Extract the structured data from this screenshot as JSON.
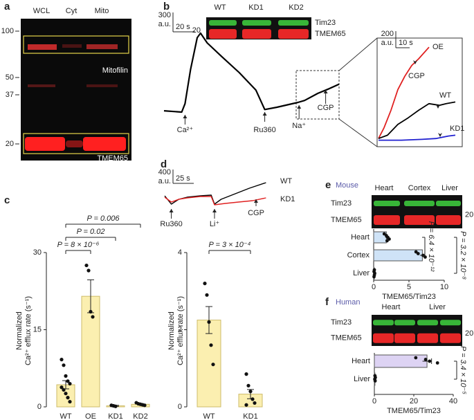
{
  "a": {
    "label": "a",
    "lanes": [
      "WCL",
      "Cyt",
      "Mito"
    ],
    "mw": [
      100,
      50,
      37,
      20
    ],
    "bands": [
      "Mitofilin",
      "TMEM65"
    ]
  },
  "b": {
    "label": "b",
    "blot": {
      "lanes": [
        "WT",
        "KD1",
        "KD2"
      ],
      "rows": [
        "Tim23",
        "TMEM65"
      ],
      "mw": [
        20
      ]
    },
    "trace": {
      "type": "line",
      "scale": {
        "y": 300,
        "unit": "a.u.",
        "x": {
          "value": 20,
          "label": "20 s"
        }
      },
      "xlim": [
        0,
        160
      ],
      "ylim": [
        0,
        1250
      ],
      "series": [
        {
          "color": "#000000",
          "x": [
            0,
            16,
            19,
            24,
            30,
            33,
            39,
            52,
            68,
            83,
            91,
            102,
            121,
            127,
            139,
            149,
            158
          ],
          "values": [
            20,
            0,
            130,
            660,
            1150,
            1220,
            1070,
            860,
            610,
            340,
            40,
            75,
            150,
            180,
            290,
            360,
            430
          ]
        }
      ],
      "events": [
        {
          "label": "Ca²⁺",
          "x": 19
        },
        {
          "label": "Ru360",
          "x": 91
        },
        {
          "label": "Na⁺",
          "x": 122
        },
        {
          "label": "CGP",
          "x": 146
        }
      ]
    },
    "inset": {
      "type": "line",
      "scale": {
        "y": 200,
        "unit": "a.u.",
        "x": {
          "value": 10,
          "label": "10 s"
        }
      },
      "xlim": [
        0,
        57
      ],
      "ylim": [
        0,
        1200
      ],
      "annotation": "CGP",
      "series": [
        {
          "name": "OE",
          "color": "#e02020",
          "x": [
            0,
            4,
            9,
            14,
            19,
            24,
            29,
            36.5
          ],
          "values": [
            40,
            170,
            380,
            630,
            790,
            920,
            1000,
            1140
          ]
        },
        {
          "name": "WT",
          "color": "#000000",
          "x": [
            0,
            6.5,
            14,
            21.5,
            29,
            36.5,
            44,
            49,
            55.5
          ],
          "values": [
            40,
            80,
            210,
            290,
            380,
            460,
            440,
            460,
            480
          ]
        },
        {
          "name": "KD1",
          "color": "#2020d0",
          "x": [
            0,
            16.5,
            31.5,
            41.5,
            50.5,
            55.5
          ],
          "values": [
            20,
            20,
            30,
            40,
            70,
            80
          ]
        }
      ]
    }
  },
  "c": {
    "label": "c",
    "ylabel": [
      "Normalized",
      "Ca²⁺ efflux rate (s⁻¹)"
    ],
    "charts": [
      {
        "type": "bar",
        "color": "#fbefb0",
        "categories": [
          "WT",
          "OE",
          "KD1",
          "KD2"
        ],
        "values": [
          4.3,
          21.5,
          0.2,
          0.5
        ],
        "errors": [
          0.8,
          3.2,
          0.1,
          0.1
        ],
        "points": [
          [
            9.2,
            8.1,
            6,
            5,
            4.5,
            3.8,
            3.3,
            2.6,
            1.8,
            1
          ],
          [
            27.5,
            26.5,
            18.5,
            17.5
          ],
          [
            0.3,
            0.2,
            0.1
          ],
          [
            0.8,
            0.6,
            0.5,
            0.4,
            0.3
          ]
        ],
        "ylim": [
          0,
          30
        ],
        "yticks": [
          0,
          15,
          30
        ],
        "comparisons": [
          "P = 8 × 10⁻⁶",
          "P = 0.02",
          "P = 0.006"
        ]
      },
      {
        "type": "bar",
        "color": "#fbefb0",
        "categories": [
          "WT",
          "KD1"
        ],
        "values": [
          2.25,
          0.33
        ],
        "errors": [
          0.35,
          0.12
        ],
        "points": [
          [
            3.2,
            2.9,
            2.2,
            1.6,
            1.1
          ],
          [
            0.85,
            0.55,
            0.4,
            0.2,
            0.1,
            0.05
          ]
        ],
        "ylim": [
          0,
          4
        ],
        "yticks": [
          0,
          2,
          4
        ],
        "comparisons": [
          "P = 3 × 10⁻⁴"
        ]
      }
    ]
  },
  "d": {
    "label": "d",
    "trace": {
      "type": "line",
      "scale": {
        "y": 400,
        "unit": "a.u.",
        "x": {
          "value": 25,
          "label": "25 s"
        }
      },
      "xlim": [
        0,
        125
      ],
      "ylim": [
        0,
        800
      ],
      "series": [
        {
          "name": "WT",
          "color": "#000000",
          "x": [
            0,
            8,
            17,
            27,
            43,
            56,
            60,
            68,
            85,
            102,
            122
          ],
          "values": [
            340,
            100,
            240,
            300,
            340,
            360,
            100,
            240,
            400,
            560,
            720
          ]
        },
        {
          "name": "KD1",
          "color": "#e02020",
          "x": [
            0,
            8,
            17,
            27,
            43,
            56,
            60,
            73,
            89,
            106,
            122
          ],
          "values": [
            300,
            160,
            240,
            280,
            320,
            320,
            80,
            120,
            160,
            200,
            280
          ]
        }
      ],
      "events": [
        {
          "label": "Ru360",
          "x": 8
        },
        {
          "label": "Li⁺",
          "x": 60
        },
        {
          "label": "CGP",
          "x": 110
        }
      ]
    }
  },
  "e": {
    "label": "e",
    "species": "Mouse",
    "blot": {
      "lanes": [
        "Heart",
        "Cortex",
        "Liver"
      ],
      "rows": [
        "Tim23",
        "TMEM65"
      ],
      "mw": [
        20
      ]
    },
    "chart": {
      "type": "hbar",
      "color": "#cfe3f7",
      "categories": [
        "Heart",
        "Cortex",
        "Liver"
      ],
      "values": [
        1.8,
        6.9,
        0.1
      ],
      "errors": [
        0.15,
        0.35,
        0.03
      ],
      "points": [
        [
          1.5,
          1.8,
          2,
          2.2,
          1.9
        ],
        [
          6,
          6.3,
          7,
          7.3
        ],
        [
          0.1,
          0.05,
          0.15,
          0.1,
          0.05
        ]
      ],
      "xlim": [
        0,
        10
      ],
      "xticks": [
        0,
        5,
        10
      ],
      "xlabel": "TMEM65/Tim23",
      "comparisons": [
        "P = 6.4 × 10⁻¹²",
        "P = 3.2 × 10⁻⁸"
      ]
    }
  },
  "f": {
    "label": "f",
    "species": "Human",
    "blot": {
      "lanes": [
        "Heart",
        "Liver"
      ],
      "rows": [
        "Tim23",
        "TMEM65"
      ],
      "mw": [
        20
      ]
    },
    "chart": {
      "type": "hbar",
      "color": "#ddd3f3",
      "categories": [
        "Heart",
        "Liver"
      ],
      "values": [
        26.7,
        0.3
      ],
      "errors": [
        2.3,
        0.1
      ],
      "points": [
        [
          21,
          26,
          28,
          32
        ],
        [
          0.3,
          0.5,
          0.2,
          0.4
        ]
      ],
      "xlim": [
        0,
        40
      ],
      "xticks": [
        0,
        20,
        40
      ],
      "xlabel": "TMEM65/Tim23",
      "comparisons": [
        "P = 3.4 × 10⁻⁵"
      ]
    }
  }
}
